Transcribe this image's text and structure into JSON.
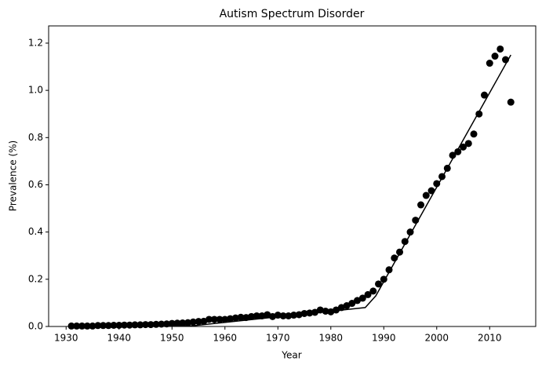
{
  "chart_data": {
    "type": "scatter",
    "title": "Autism Spectrum Disorder",
    "xlabel": "Year",
    "ylabel": "Prevalence (%)",
    "xlim": [
      1926.7,
      2018.7
    ],
    "ylim": [
      0,
      1.273
    ],
    "xticks": [
      1930,
      1940,
      1950,
      1960,
      1970,
      1980,
      1990,
      2000,
      2010
    ],
    "yticks": [
      {
        "value": 0,
        "label": "0.0"
      },
      {
        "value": 0.2,
        "label": "0.2"
      },
      {
        "value": 0.4,
        "label": "0.4"
      },
      {
        "value": 0.6,
        "label": "0.6"
      },
      {
        "value": 0.8,
        "label": "0.8"
      },
      {
        "value": 1.0,
        "label": "1.0"
      },
      {
        "value": 1.2,
        "label": "1.2"
      }
    ],
    "series": [
      {
        "type": "scatter",
        "color": "#000000",
        "x": [
          1931,
          1932,
          1933,
          1934,
          1935,
          1936,
          1937,
          1938,
          1939,
          1940,
          1941,
          1942,
          1943,
          1944,
          1945,
          1946,
          1947,
          1948,
          1949,
          1950,
          1951,
          1952,
          1953,
          1954,
          1955,
          1956,
          1957,
          1958,
          1959,
          1960,
          1961,
          1962,
          1963,
          1964,
          1965,
          1966,
          1967,
          1968,
          1969,
          1970,
          1971,
          1972,
          1973,
          1974,
          1975,
          1976,
          1977,
          1978,
          1979,
          1980,
          1981,
          1982,
          1983,
          1984,
          1985,
          1986,
          1987,
          1988,
          1989,
          1990,
          1991,
          1992,
          1993,
          1994,
          1995,
          1996,
          1997,
          1998,
          1999,
          2000,
          2001,
          2002,
          2003,
          2004,
          2005,
          2006,
          2007,
          2008,
          2009,
          2010,
          2011,
          2012,
          2013,
          2014
        ],
        "values": [
          0.002,
          0.002,
          0.002,
          0.002,
          0.002,
          0.004,
          0.004,
          0.004,
          0.005,
          0.005,
          0.006,
          0.006,
          0.007,
          0.007,
          0.008,
          0.008,
          0.009,
          0.01,
          0.011,
          0.013,
          0.014,
          0.015,
          0.016,
          0.019,
          0.021,
          0.022,
          0.03,
          0.03,
          0.03,
          0.03,
          0.033,
          0.036,
          0.039,
          0.038,
          0.042,
          0.045,
          0.045,
          0.05,
          0.042,
          0.048,
          0.045,
          0.045,
          0.048,
          0.05,
          0.055,
          0.057,
          0.06,
          0.07,
          0.065,
          0.062,
          0.07,
          0.08,
          0.088,
          0.098,
          0.11,
          0.12,
          0.135,
          0.15,
          0.18,
          0.2,
          0.24,
          0.29,
          0.315,
          0.36,
          0.4,
          0.45,
          0.515,
          0.555,
          0.575,
          0.605,
          0.635,
          0.67,
          0.725,
          0.74,
          0.76,
          0.775,
          0.815,
          0.9,
          0.98,
          1.115,
          1.145,
          1.175,
          1.13,
          0.95
        ]
      },
      {
        "type": "line",
        "color": "#000000",
        "x": [
          1931,
          1954,
          1986.5,
          1988.5,
          2014
        ],
        "values": [
          0,
          0.003,
          0.08,
          0.13,
          1.15
        ]
      }
    ]
  }
}
